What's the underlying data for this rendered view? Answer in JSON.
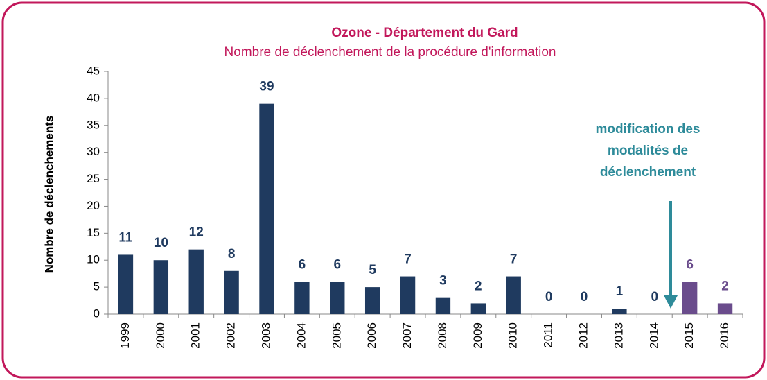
{
  "chart_data": {
    "type": "bar",
    "title": "Ozone - Département du Gard",
    "subtitle": "Nombre de déclenchement de la procédure d'information",
    "y_label": "Nombre de déclenchements",
    "categories": [
      "1999",
      "2000",
      "2001",
      "2002",
      "2003",
      "2004",
      "2005",
      "2006",
      "2007",
      "2008",
      "2009",
      "2010",
      "2011",
      "2012",
      "2013",
      "2014",
      "2015",
      "2016"
    ],
    "values": [
      11,
      10,
      12,
      8,
      39,
      6,
      6,
      5,
      7,
      3,
      2,
      7,
      0,
      0,
      1,
      0,
      6,
      2
    ],
    "colors": [
      "#1f3a5f",
      "#1f3a5f",
      "#1f3a5f",
      "#1f3a5f",
      "#1f3a5f",
      "#1f3a5f",
      "#1f3a5f",
      "#1f3a5f",
      "#1f3a5f",
      "#1f3a5f",
      "#1f3a5f",
      "#1f3a5f",
      "#1f3a5f",
      "#1f3a5f",
      "#1f3a5f",
      "#1f3a5f",
      "#6a4c8c",
      "#6a4c8c"
    ],
    "ylim": [
      0,
      45
    ],
    "yticks": [
      0,
      5,
      10,
      15,
      20,
      25,
      30,
      35,
      40,
      45
    ],
    "annotation": [
      "modification des",
      "modalités de",
      "déclenchement"
    ]
  }
}
